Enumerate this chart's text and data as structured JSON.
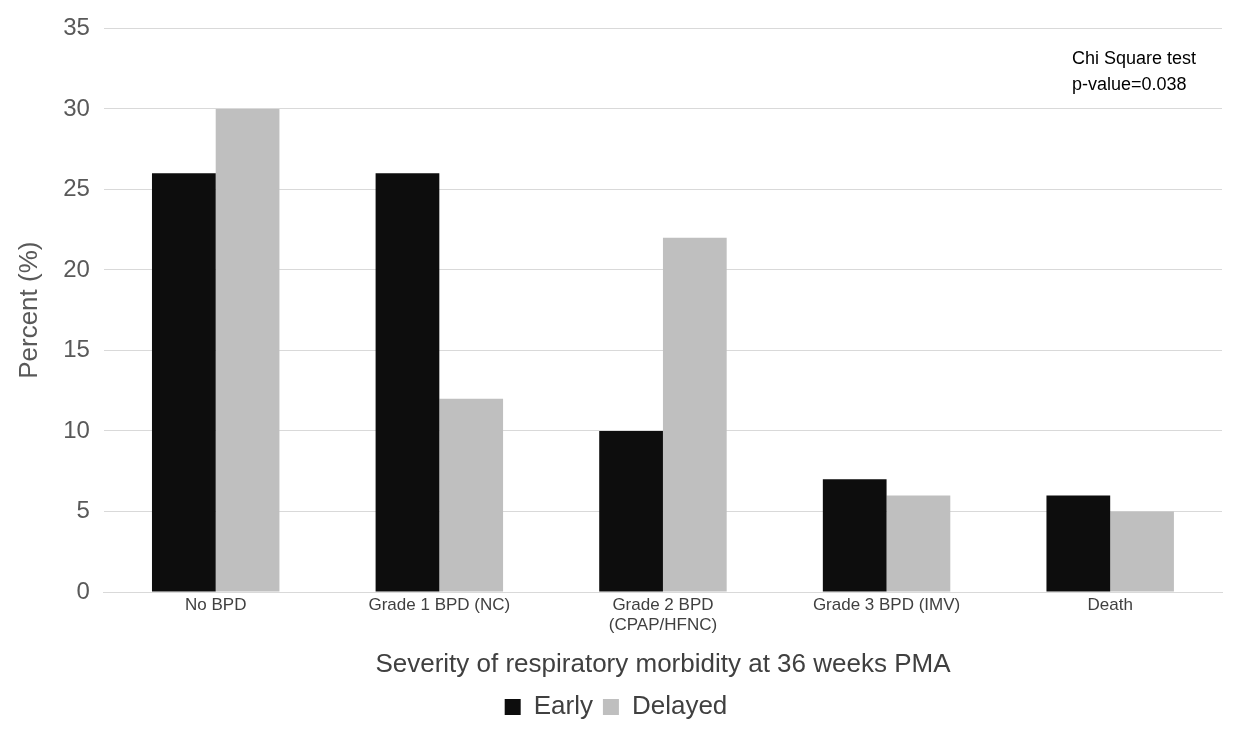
{
  "chart_data": {
    "type": "bar",
    "xlabel": "Severity of respiratory morbidity at 36 weeks PMA",
    "ylabel": "Percent (%)",
    "categories": [
      "No BPD",
      "Grade 1 BPD (NC)",
      "Grade 2 BPD\n(CPAP/HFNC)",
      "Grade 3 BPD (IMV)",
      "Death"
    ],
    "series": [
      {
        "name": "Early",
        "color": "#0d0d0d",
        "values": [
          26,
          26,
          10,
          7,
          6
        ]
      },
      {
        "name": "Delayed",
        "color": "#bfbfbf",
        "values": [
          30,
          12,
          22,
          6,
          5
        ]
      }
    ],
    "ylim": [
      0,
      35
    ],
    "yticks": [
      0,
      5,
      10,
      15,
      20,
      25,
      30,
      35
    ],
    "grid": "y",
    "legend": "bottom",
    "annotations": [
      "Chi Square test\np-value=0.038"
    ]
  }
}
